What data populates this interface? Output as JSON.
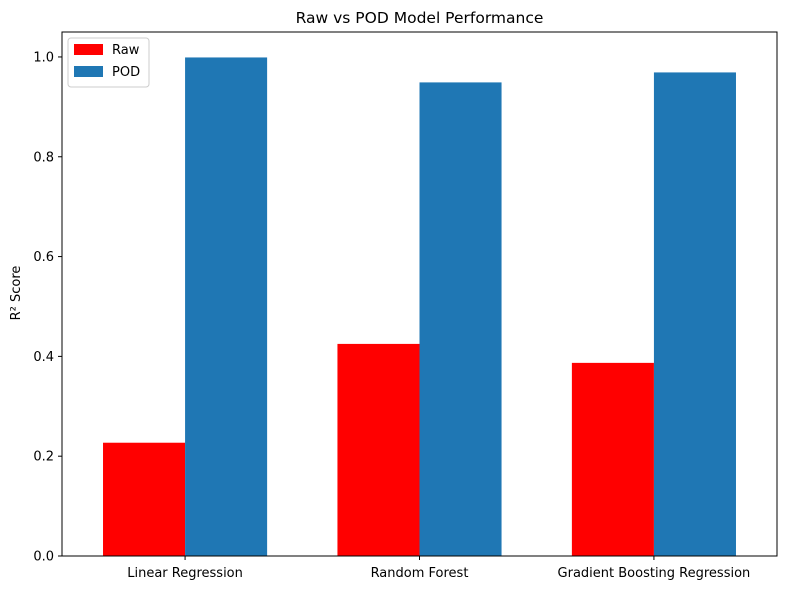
{
  "chart_data": {
    "type": "bar",
    "title": "Raw vs POD Model Performance",
    "xlabel": "",
    "ylabel": "R² Score",
    "categories": [
      "Linear Regression",
      "Random Forest",
      "Gradient Boosting Regression"
    ],
    "series": [
      {
        "name": "Raw",
        "color": "#ff0000",
        "values": [
          0.227,
          0.425,
          0.387
        ]
      },
      {
        "name": "POD",
        "color": "#1f77b4",
        "values": [
          0.999,
          0.949,
          0.969
        ]
      }
    ],
    "ylim": [
      0,
      1.05
    ],
    "yticks": [
      "0.0",
      "0.2",
      "0.4",
      "0.6",
      "0.8",
      "1.0"
    ],
    "grid": false,
    "legend_position": "upper-left"
  }
}
